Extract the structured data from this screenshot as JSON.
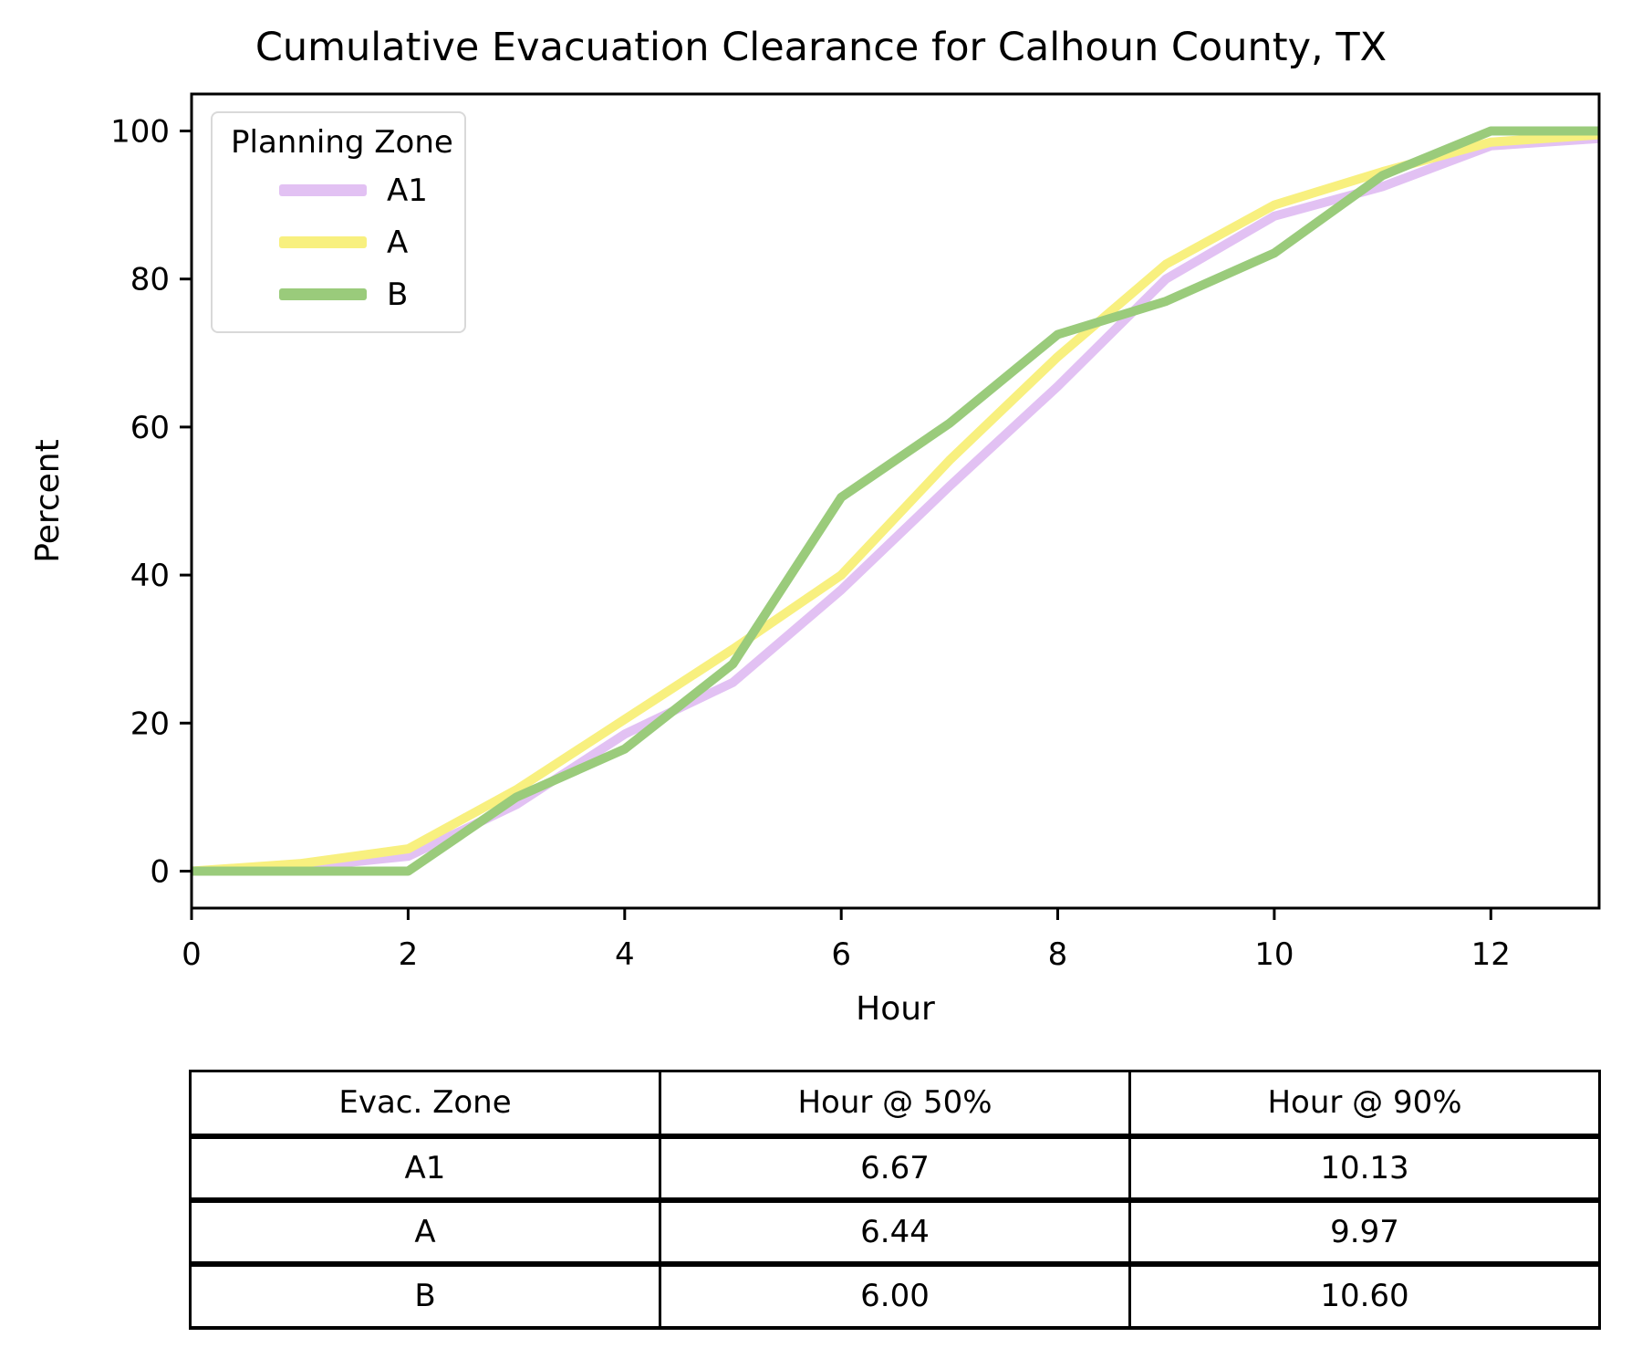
{
  "chart_data": {
    "type": "line",
    "title": "Cumulative Evacuation Clearance for Calhoun County, TX",
    "xlabel": "Hour",
    "ylabel": "Percent",
    "xlim": [
      0,
      13
    ],
    "ylim": [
      -5,
      105
    ],
    "xticks": [
      0,
      2,
      4,
      6,
      8,
      10,
      12
    ],
    "yticks": [
      0,
      20,
      40,
      60,
      80,
      100
    ],
    "grid": false,
    "legend": {
      "title": "Planning Zone",
      "position": "upper left"
    },
    "x": [
      0,
      1,
      2,
      3,
      4,
      5,
      6,
      7,
      8,
      9,
      10,
      11,
      12,
      13
    ],
    "series": [
      {
        "name": "A1",
        "color": "#e2c1f3",
        "values": [
          0,
          0.5,
          2,
          9,
          18.5,
          25.5,
          38,
          52,
          65.5,
          80,
          88.5,
          92.5,
          98,
          99
        ]
      },
      {
        "name": "A",
        "color": "#f8f07f",
        "values": [
          0,
          1,
          3,
          11,
          20.5,
          30,
          40,
          55.5,
          69.5,
          82,
          90,
          94.5,
          98.5,
          99.5
        ]
      },
      {
        "name": "B",
        "color": "#9acb7b",
        "values": [
          0,
          0,
          0,
          10,
          16.5,
          28,
          50.5,
          60.5,
          72.5,
          77,
          83.5,
          94,
          100,
          100
        ]
      }
    ]
  },
  "table": {
    "headers": [
      "Evac. Zone",
      "Hour @ 50%",
      "Hour @ 90%"
    ],
    "rows": [
      [
        "A1",
        "6.67",
        "10.13"
      ],
      [
        "A",
        "6.44",
        "9.97"
      ],
      [
        "B",
        "6.00",
        "10.60"
      ]
    ]
  }
}
